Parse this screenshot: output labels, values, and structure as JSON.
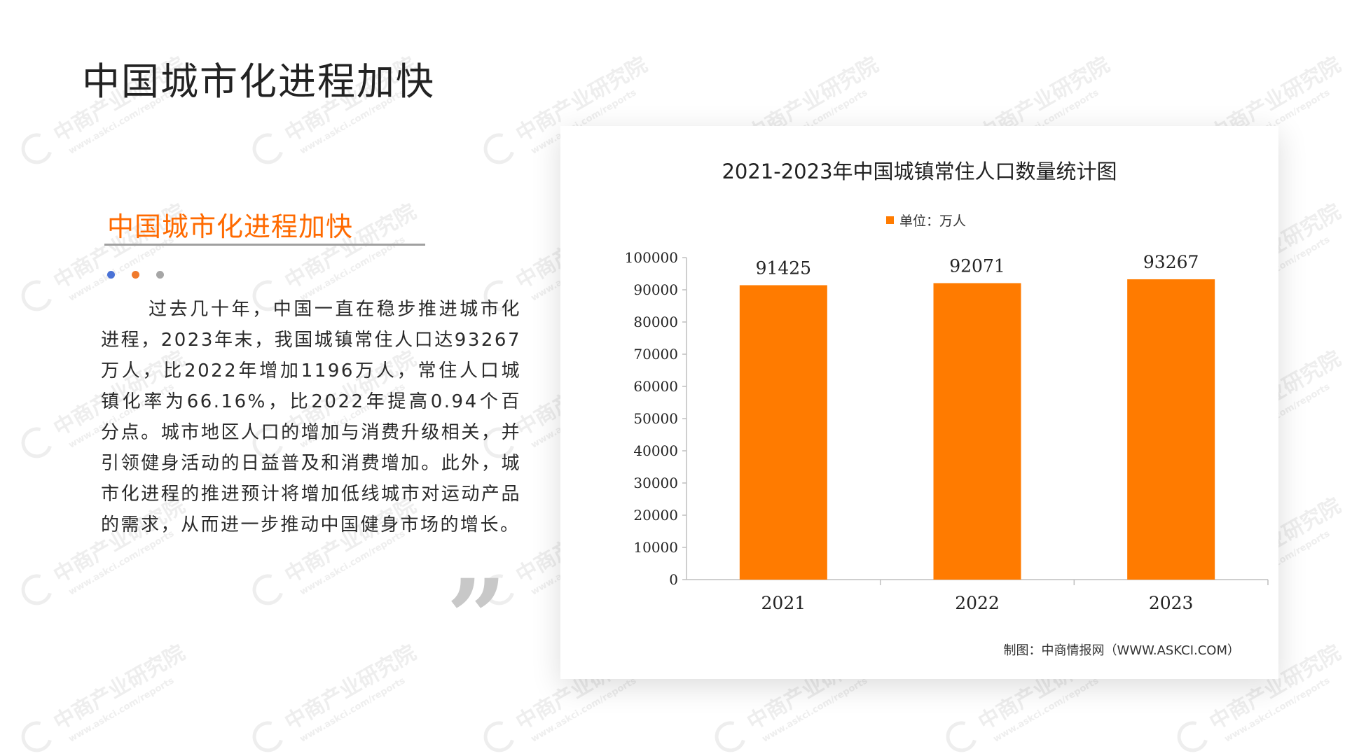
{
  "page": {
    "title": "中国城市化进程加快",
    "section_title": "中国城市化进程加快",
    "body_text": "过去几十年，中国一直在稳步推进城市化进程，2023年末，我国城镇常住人口达93267万人，比2022年增加1196万人，常住人口城镇化率为66.16%，比2022年提高0.94个百分点。城市地区人口的增加与消费升级相关，并引领健身活动的日益普及和消费增加。此外，城市化进程的推进预计将增加低线城市对运动产品的需求，从而进一步推动中国健身市场的增长。",
    "quote_glyph": "”",
    "watermark_text": "中商产业研究院",
    "watermark_url": "www.askci.com/reports"
  },
  "colors": {
    "accent": "#ff6a00",
    "bar": "#ff7b00",
    "dot_blue": "#4a72d6",
    "dot_orange": "#f07a2c",
    "dot_gray": "#a6a6a6"
  },
  "chart_data": {
    "type": "bar",
    "title": "2021-2023年中国城镇常住人口数量统计图",
    "legend": "单位：万人",
    "categories": [
      "2021",
      "2022",
      "2023"
    ],
    "values": [
      91425,
      92071,
      93267
    ],
    "ylim": [
      0,
      100000
    ],
    "yticks": [
      0,
      10000,
      20000,
      30000,
      40000,
      50000,
      60000,
      70000,
      80000,
      90000,
      100000
    ],
    "grid": false,
    "legend_position": "top",
    "source": "制图：中商情报网（WWW.ASKCI.COM）"
  }
}
